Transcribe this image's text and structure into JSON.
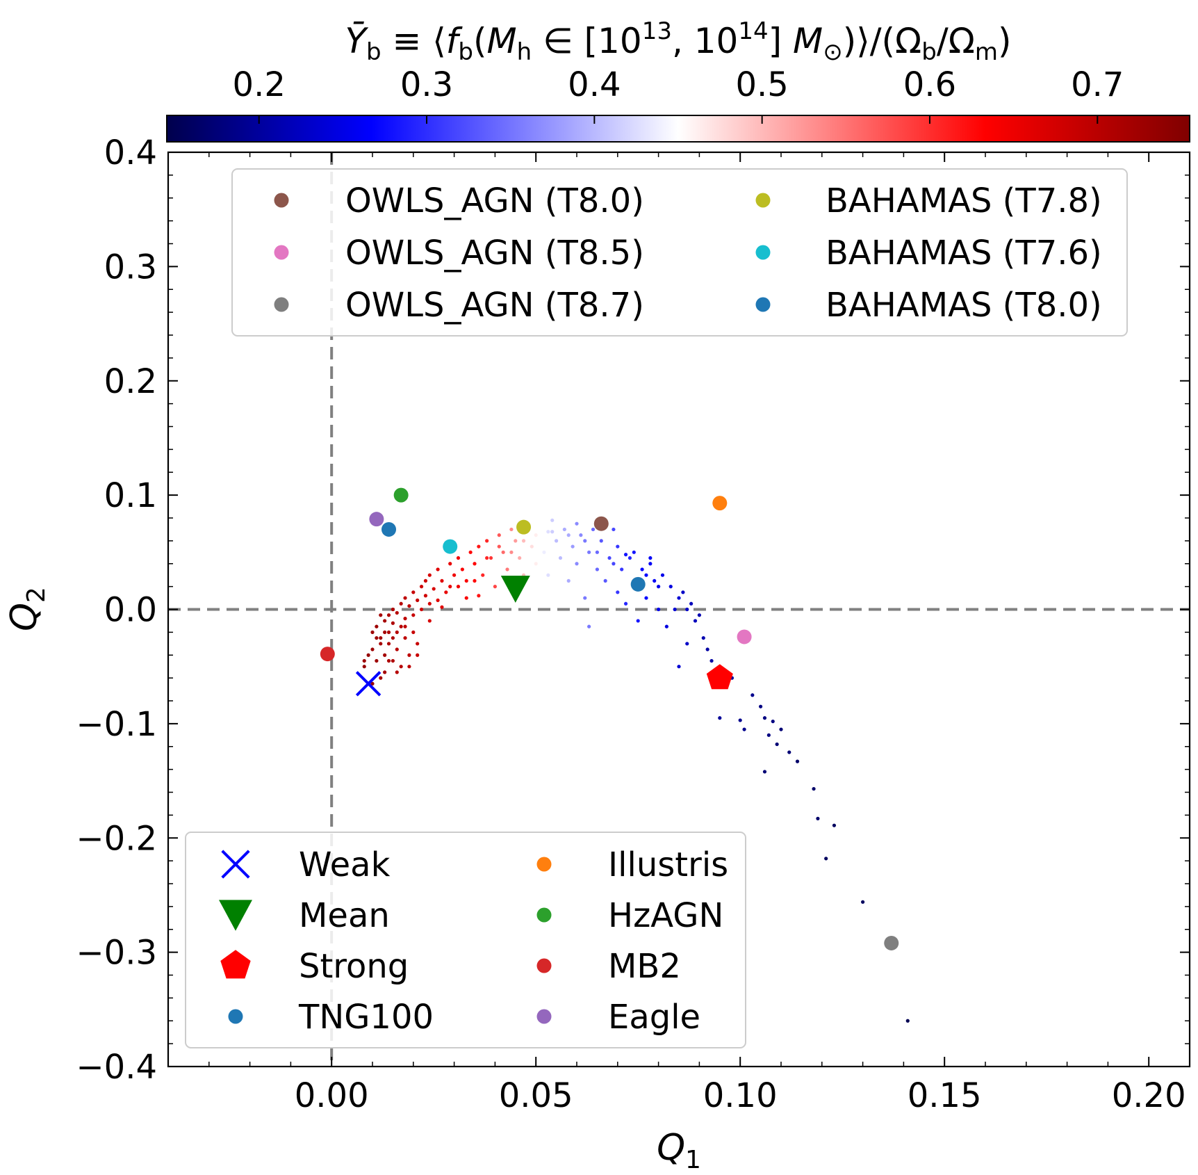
{
  "chart_data": {
    "type": "scatter",
    "title": "",
    "xlabel": "Q_1",
    "ylabel": "Q_2",
    "xlim": [
      -0.04,
      0.21
    ],
    "ylim": [
      -0.4,
      0.4
    ],
    "x_ticks": [
      0.0,
      0.05,
      0.1,
      0.15,
      0.2
    ],
    "x_tick_labels": [
      "0.00",
      "0.05",
      "0.10",
      "0.15",
      "0.20"
    ],
    "y_ticks": [
      -0.4,
      -0.3,
      -0.2,
      -0.1,
      0.0,
      0.1,
      0.2,
      0.3,
      0.4
    ],
    "y_tick_labels": [
      "−0.4",
      "−0.3",
      "−0.2",
      "−0.1",
      "0.0",
      "0.1",
      "0.2",
      "0.3",
      "0.4"
    ],
    "reference_lines": {
      "x": 0.0,
      "y": 0.0,
      "style": "dashed",
      "color": "#808080"
    },
    "colorbar": {
      "label": "Ȳ_b ≡ ⟨f_b(M_h ∈ [10^13, 10^14] M_⊙)⟩/(Ω_b/Ω_m)",
      "cmap": "seismic",
      "range": [
        0.145,
        0.755
      ],
      "ticks": [
        0.2,
        0.3,
        0.4,
        0.5,
        0.6,
        0.7
      ],
      "tick_labels": [
        "0.2",
        "0.3",
        "0.4",
        "0.5",
        "0.6",
        "0.7"
      ],
      "stops": [
        "#00004c",
        "#0000ff",
        "#ffffff",
        "#ff0000",
        "#800000"
      ]
    },
    "series": [
      {
        "name": "OWLS_AGN (T8.0)",
        "marker": "circle",
        "color": "#8c564b",
        "x": 0.066,
        "y": 0.075
      },
      {
        "name": "OWLS_AGN (T8.5)",
        "marker": "circle",
        "color": "#e377c2",
        "x": 0.101,
        "y": -0.024
      },
      {
        "name": "OWLS_AGN (T8.7)",
        "marker": "circle",
        "color": "#7f7f7f",
        "x": 0.137,
        "y": -0.292
      },
      {
        "name": "BAHAMAS (T7.8)",
        "marker": "circle",
        "color": "#bcbd22",
        "x": 0.047,
        "y": 0.072
      },
      {
        "name": "BAHAMAS (T7.6)",
        "marker": "circle",
        "color": "#17becf",
        "x": 0.029,
        "y": 0.055
      },
      {
        "name": "BAHAMAS (T8.0)",
        "marker": "circle",
        "color": "#1f77b4",
        "x": 0.075,
        "y": 0.022
      },
      {
        "name": "Weak",
        "marker": "x",
        "color": "#0000ff",
        "x": 0.009,
        "y": -0.065
      },
      {
        "name": "Mean",
        "marker": "triangle-down",
        "color": "#008000",
        "x": 0.045,
        "y": 0.018
      },
      {
        "name": "Strong",
        "marker": "pentagon",
        "color": "#ff0000",
        "x": 0.095,
        "y": -0.06
      },
      {
        "name": "TNG100",
        "marker": "circle",
        "color": "#1f77b4",
        "x": 0.014,
        "y": 0.07
      },
      {
        "name": "Illustris",
        "marker": "circle",
        "color": "#ff7f0e",
        "x": 0.095,
        "y": 0.093
      },
      {
        "name": "HzAGN",
        "marker": "circle",
        "color": "#2ca02c",
        "x": 0.017,
        "y": 0.1
      },
      {
        "name": "MB2",
        "marker": "circle",
        "color": "#d62728",
        "x": -0.001,
        "y": -0.039
      },
      {
        "name": "Eagle",
        "marker": "circle",
        "color": "#9467bd",
        "x": 0.011,
        "y": 0.079
      }
    ],
    "samples": [
      [
        0.01,
        -0.065,
        0.73
      ],
      [
        0.008,
        -0.05,
        0.73
      ],
      [
        0.008,
        -0.045,
        0.72
      ],
      [
        0.01,
        -0.035,
        0.72
      ],
      [
        0.011,
        -0.025,
        0.72
      ],
      [
        0.011,
        -0.015,
        0.72
      ],
      [
        0.011,
        -0.045,
        0.72
      ],
      [
        0.012,
        -0.03,
        0.71
      ],
      [
        0.012,
        -0.005,
        0.71
      ],
      [
        0.012,
        -0.025,
        0.71
      ],
      [
        0.013,
        -0.04,
        0.71
      ],
      [
        0.013,
        -0.01,
        0.71
      ],
      [
        0.013,
        -0.055,
        0.71
      ],
      [
        0.014,
        -0.02,
        0.7
      ],
      [
        0.014,
        -0.005,
        0.7
      ],
      [
        0.014,
        -0.03,
        0.7
      ],
      [
        0.015,
        -0.012,
        0.7
      ],
      [
        0.015,
        -0.045,
        0.7
      ],
      [
        0.015,
        0.0,
        0.7
      ],
      [
        0.016,
        -0.02,
        0.69
      ],
      [
        0.016,
        -0.035,
        0.69
      ],
      [
        0.016,
        -0.003,
        0.69
      ],
      [
        0.017,
        -0.015,
        0.69
      ],
      [
        0.017,
        0.005,
        0.69
      ],
      [
        0.017,
        -0.05,
        0.69
      ],
      [
        0.018,
        -0.025,
        0.68
      ],
      [
        0.018,
        -0.008,
        0.68
      ],
      [
        0.018,
        0.01,
        0.68
      ],
      [
        0.019,
        -0.04,
        0.68
      ],
      [
        0.019,
        0.003,
        0.68
      ],
      [
        0.02,
        -0.02,
        0.67
      ],
      [
        0.02,
        0.015,
        0.67
      ],
      [
        0.02,
        -0.005,
        0.67
      ],
      [
        0.021,
        0.008,
        0.67
      ],
      [
        0.021,
        -0.03,
        0.67
      ],
      [
        0.022,
        0.02,
        0.66
      ],
      [
        0.022,
        0.0,
        0.66
      ],
      [
        0.023,
        0.012,
        0.66
      ],
      [
        0.023,
        0.025,
        0.66
      ],
      [
        0.024,
        0.005,
        0.65
      ],
      [
        0.024,
        0.03,
        0.65
      ],
      [
        0.025,
        0.018,
        0.65
      ],
      [
        0.026,
        0.008,
        0.64
      ],
      [
        0.026,
        0.035,
        0.64
      ],
      [
        0.027,
        0.025,
        0.64
      ],
      [
        0.028,
        0.015,
        0.63
      ],
      [
        0.029,
        0.04,
        0.63
      ],
      [
        0.03,
        0.03,
        0.62
      ],
      [
        0.031,
        0.02,
        0.62
      ],
      [
        0.031,
        0.045,
        0.62
      ],
      [
        0.032,
        0.035,
        0.61
      ],
      [
        0.033,
        0.01,
        0.61
      ],
      [
        0.034,
        0.05,
        0.6
      ],
      [
        0.035,
        0.04,
        0.6
      ],
      [
        0.035,
        0.025,
        0.6
      ],
      [
        0.036,
        0.055,
        0.59
      ],
      [
        0.037,
        0.03,
        0.58
      ],
      [
        0.038,
        0.06,
        0.58
      ],
      [
        0.039,
        0.045,
        0.57
      ],
      [
        0.04,
        0.02,
        0.56
      ],
      [
        0.041,
        0.065,
        0.55
      ],
      [
        0.042,
        0.05,
        0.54
      ],
      [
        0.043,
        0.035,
        0.53
      ],
      [
        0.044,
        0.07,
        0.52
      ],
      [
        0.045,
        0.06,
        0.51
      ],
      [
        0.046,
        0.045,
        0.5
      ],
      [
        0.047,
        0.03,
        0.49
      ],
      [
        0.048,
        0.072,
        0.48
      ],
      [
        0.049,
        0.055,
        0.47
      ],
      [
        0.05,
        0.065,
        0.46
      ],
      [
        0.05,
        0.04,
        0.46
      ],
      [
        0.051,
        0.075,
        0.45
      ],
      [
        0.052,
        0.05,
        0.44
      ],
      [
        0.053,
        0.068,
        0.43
      ],
      [
        0.053,
        0.03,
        0.43
      ],
      [
        0.054,
        0.078,
        0.42
      ],
      [
        0.055,
        0.06,
        0.41
      ],
      [
        0.056,
        0.045,
        0.41
      ],
      [
        0.057,
        0.07,
        0.4
      ],
      [
        0.058,
        0.025,
        0.4
      ],
      [
        0.059,
        0.055,
        0.39
      ],
      [
        0.06,
        0.075,
        0.38
      ],
      [
        0.06,
        0.04,
        0.38
      ],
      [
        0.061,
        0.065,
        0.38
      ],
      [
        0.062,
        0.01,
        0.37
      ],
      [
        0.063,
        0.05,
        0.37
      ],
      [
        0.063,
        -0.015,
        0.37
      ],
      [
        0.064,
        0.07,
        0.36
      ],
      [
        0.065,
        0.035,
        0.36
      ],
      [
        0.066,
        0.06,
        0.35
      ],
      [
        0.067,
        0.025,
        0.35
      ],
      [
        0.068,
        0.045,
        0.34
      ],
      [
        0.069,
        0.07,
        0.34
      ],
      [
        0.07,
        0.015,
        0.33
      ],
      [
        0.07,
        0.055,
        0.33
      ],
      [
        0.071,
        0.035,
        0.33
      ],
      [
        0.072,
        0.005,
        0.32
      ],
      [
        0.073,
        0.045,
        0.32
      ],
      [
        0.074,
        0.02,
        0.31
      ],
      [
        0.075,
        -0.01,
        0.31
      ],
      [
        0.076,
        0.035,
        0.3
      ],
      [
        0.077,
        0.01,
        0.3
      ],
      [
        0.078,
        0.04,
        0.29
      ],
      [
        0.079,
        0.025,
        0.29
      ],
      [
        0.08,
        0.0,
        0.28
      ],
      [
        0.081,
        0.03,
        0.28
      ],
      [
        0.082,
        -0.015,
        0.27
      ],
      [
        0.083,
        0.02,
        0.27
      ],
      [
        0.084,
        0.0,
        0.26
      ],
      [
        0.085,
        -0.05,
        0.26
      ],
      [
        0.086,
        0.015,
        0.25
      ],
      [
        0.087,
        -0.03,
        0.25
      ],
      [
        0.088,
        0.005,
        0.24
      ],
      [
        0.089,
        -0.01,
        0.24
      ],
      [
        0.09,
        -0.005,
        0.23
      ],
      [
        0.091,
        -0.025,
        0.23
      ],
      [
        0.092,
        -0.035,
        0.22
      ],
      [
        0.093,
        -0.045,
        0.22
      ],
      [
        0.095,
        -0.095,
        0.21
      ],
      [
        0.098,
        -0.06,
        0.21
      ],
      [
        0.1,
        -0.097,
        0.2
      ],
      [
        0.101,
        -0.105,
        0.2
      ],
      [
        0.103,
        -0.075,
        0.2
      ],
      [
        0.105,
        -0.085,
        0.19
      ],
      [
        0.106,
        -0.095,
        0.19
      ],
      [
        0.107,
        -0.11,
        0.19
      ],
      [
        0.108,
        -0.098,
        0.19
      ],
      [
        0.109,
        -0.118,
        0.18
      ],
      [
        0.11,
        -0.105,
        0.18
      ],
      [
        0.106,
        -0.142,
        0.18
      ],
      [
        0.112,
        -0.125,
        0.18
      ],
      [
        0.114,
        -0.133,
        0.17
      ],
      [
        0.118,
        -0.157,
        0.17
      ],
      [
        0.119,
        -0.183,
        0.17
      ],
      [
        0.121,
        -0.218,
        0.16
      ],
      [
        0.123,
        -0.189,
        0.16
      ],
      [
        0.13,
        -0.256,
        0.16
      ],
      [
        0.141,
        -0.36,
        0.15
      ],
      [
        0.072,
        0.048,
        0.31
      ],
      [
        0.078,
        0.045,
        0.29
      ],
      [
        0.012,
        -0.06,
        0.71
      ],
      [
        0.014,
        -0.045,
        0.7
      ],
      [
        0.016,
        -0.055,
        0.69
      ],
      [
        0.019,
        -0.05,
        0.68
      ],
      [
        0.021,
        -0.04,
        0.67
      ],
      [
        0.024,
        -0.01,
        0.65
      ],
      [
        0.027,
        0.002,
        0.64
      ],
      [
        0.029,
        0.02,
        0.63
      ],
      [
        0.033,
        0.025,
        0.61
      ],
      [
        0.036,
        0.012,
        0.59
      ],
      [
        0.038,
        0.045,
        0.58
      ],
      [
        0.041,
        0.055,
        0.55
      ],
      [
        0.044,
        0.05,
        0.52
      ],
      [
        0.047,
        0.06,
        0.49
      ],
      [
        0.051,
        0.06,
        0.45
      ],
      [
        0.054,
        0.068,
        0.42
      ],
      [
        0.058,
        0.065,
        0.4
      ],
      [
        0.062,
        0.06,
        0.37
      ],
      [
        0.065,
        0.05,
        0.36
      ],
      [
        0.069,
        0.04,
        0.34
      ],
      [
        0.074,
        0.05,
        0.31
      ],
      [
        0.077,
        0.03,
        0.3
      ],
      [
        0.08,
        0.02,
        0.28
      ],
      [
        0.085,
        0.01,
        0.26
      ],
      [
        0.087,
        0.0,
        0.25
      ],
      [
        0.009,
        -0.04,
        0.73
      ],
      [
        0.01,
        -0.02,
        0.72
      ],
      [
        0.013,
        -0.02,
        0.71
      ],
      [
        0.015,
        -0.025,
        0.7
      ],
      [
        0.018,
        -0.015,
        0.68
      ]
    ]
  }
}
